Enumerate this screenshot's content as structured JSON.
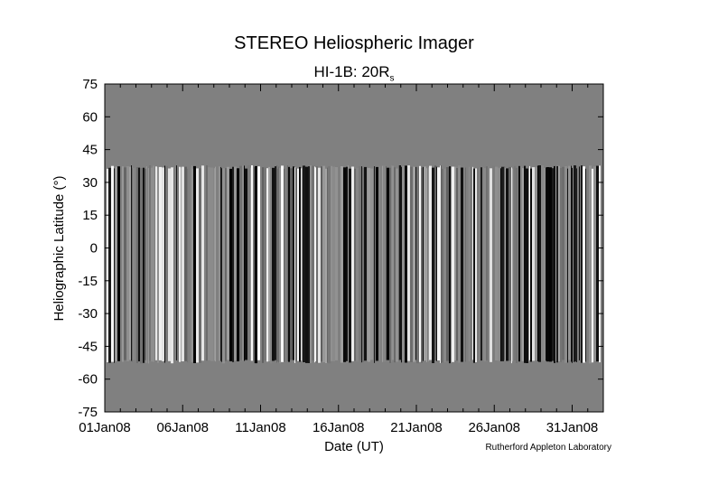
{
  "chart_data": {
    "type": "heatmap",
    "title": "STEREO Heliospheric Imager",
    "subtitle_main": "HI-1B: 20R",
    "subtitle_sub": "s",
    "xlabel": "Date (UT)",
    "ylabel": "Heliographic Latitude (°)",
    "x_ticks": [
      "01Jan08",
      "06Jan08",
      "11Jan08",
      "16Jan08",
      "21Jan08",
      "26Jan08",
      "31Jan08"
    ],
    "x_range_days": [
      0,
      32
    ],
    "y_ticks": [
      75,
      60,
      45,
      30,
      15,
      0,
      -15,
      -30,
      -45,
      -60,
      -75
    ],
    "ylim": [
      -75,
      75
    ],
    "data_coverage_latitude": [
      -52,
      37
    ],
    "background_color": "#808080",
    "colormap": "grayscale running-difference"
  },
  "credit": "Rutherford Appleton Laboratory"
}
